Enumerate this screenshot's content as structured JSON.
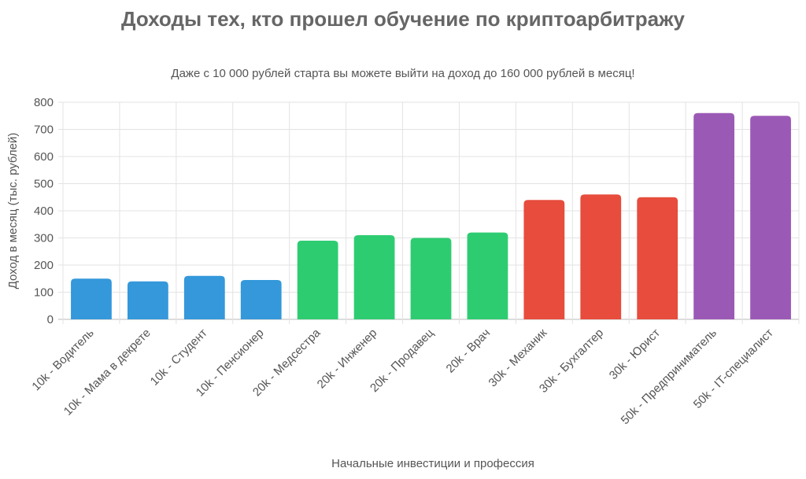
{
  "chart_data": {
    "type": "bar",
    "title": "Доходы тех, кто прошел обучение по криптоарбитражу",
    "subtitle": "Даже с 10 000 рублей старта вы можете выйти на доход до 160 000 рублей в месяц!",
    "xlabel": "Начальные инвестиции и профессия",
    "ylabel": "Доход в месяц (тыс. рублей)",
    "ylim": [
      0,
      800
    ],
    "yticks": [
      0,
      100,
      200,
      300,
      400,
      500,
      600,
      700,
      800
    ],
    "grid": true,
    "categories": [
      "10k - Водитель",
      "10k - Мама в декрете",
      "10k - Студент",
      "10k - Пенсионер",
      "20k - Медсестра",
      "20k - Инженер",
      "20k - Продавец",
      "20k - Врач",
      "30k - Механик",
      "30k - Бухгалтер",
      "30k - Юрист",
      "50k - Предприниматель",
      "50k - IT-специалист"
    ],
    "values": [
      150,
      140,
      160,
      145,
      290,
      310,
      300,
      320,
      440,
      460,
      450,
      760,
      750
    ],
    "colors": [
      "#3498db",
      "#3498db",
      "#3498db",
      "#3498db",
      "#2ecc71",
      "#2ecc71",
      "#2ecc71",
      "#2ecc71",
      "#e74c3c",
      "#e74c3c",
      "#e74c3c",
      "#9b59b6",
      "#9b59b6"
    ]
  }
}
